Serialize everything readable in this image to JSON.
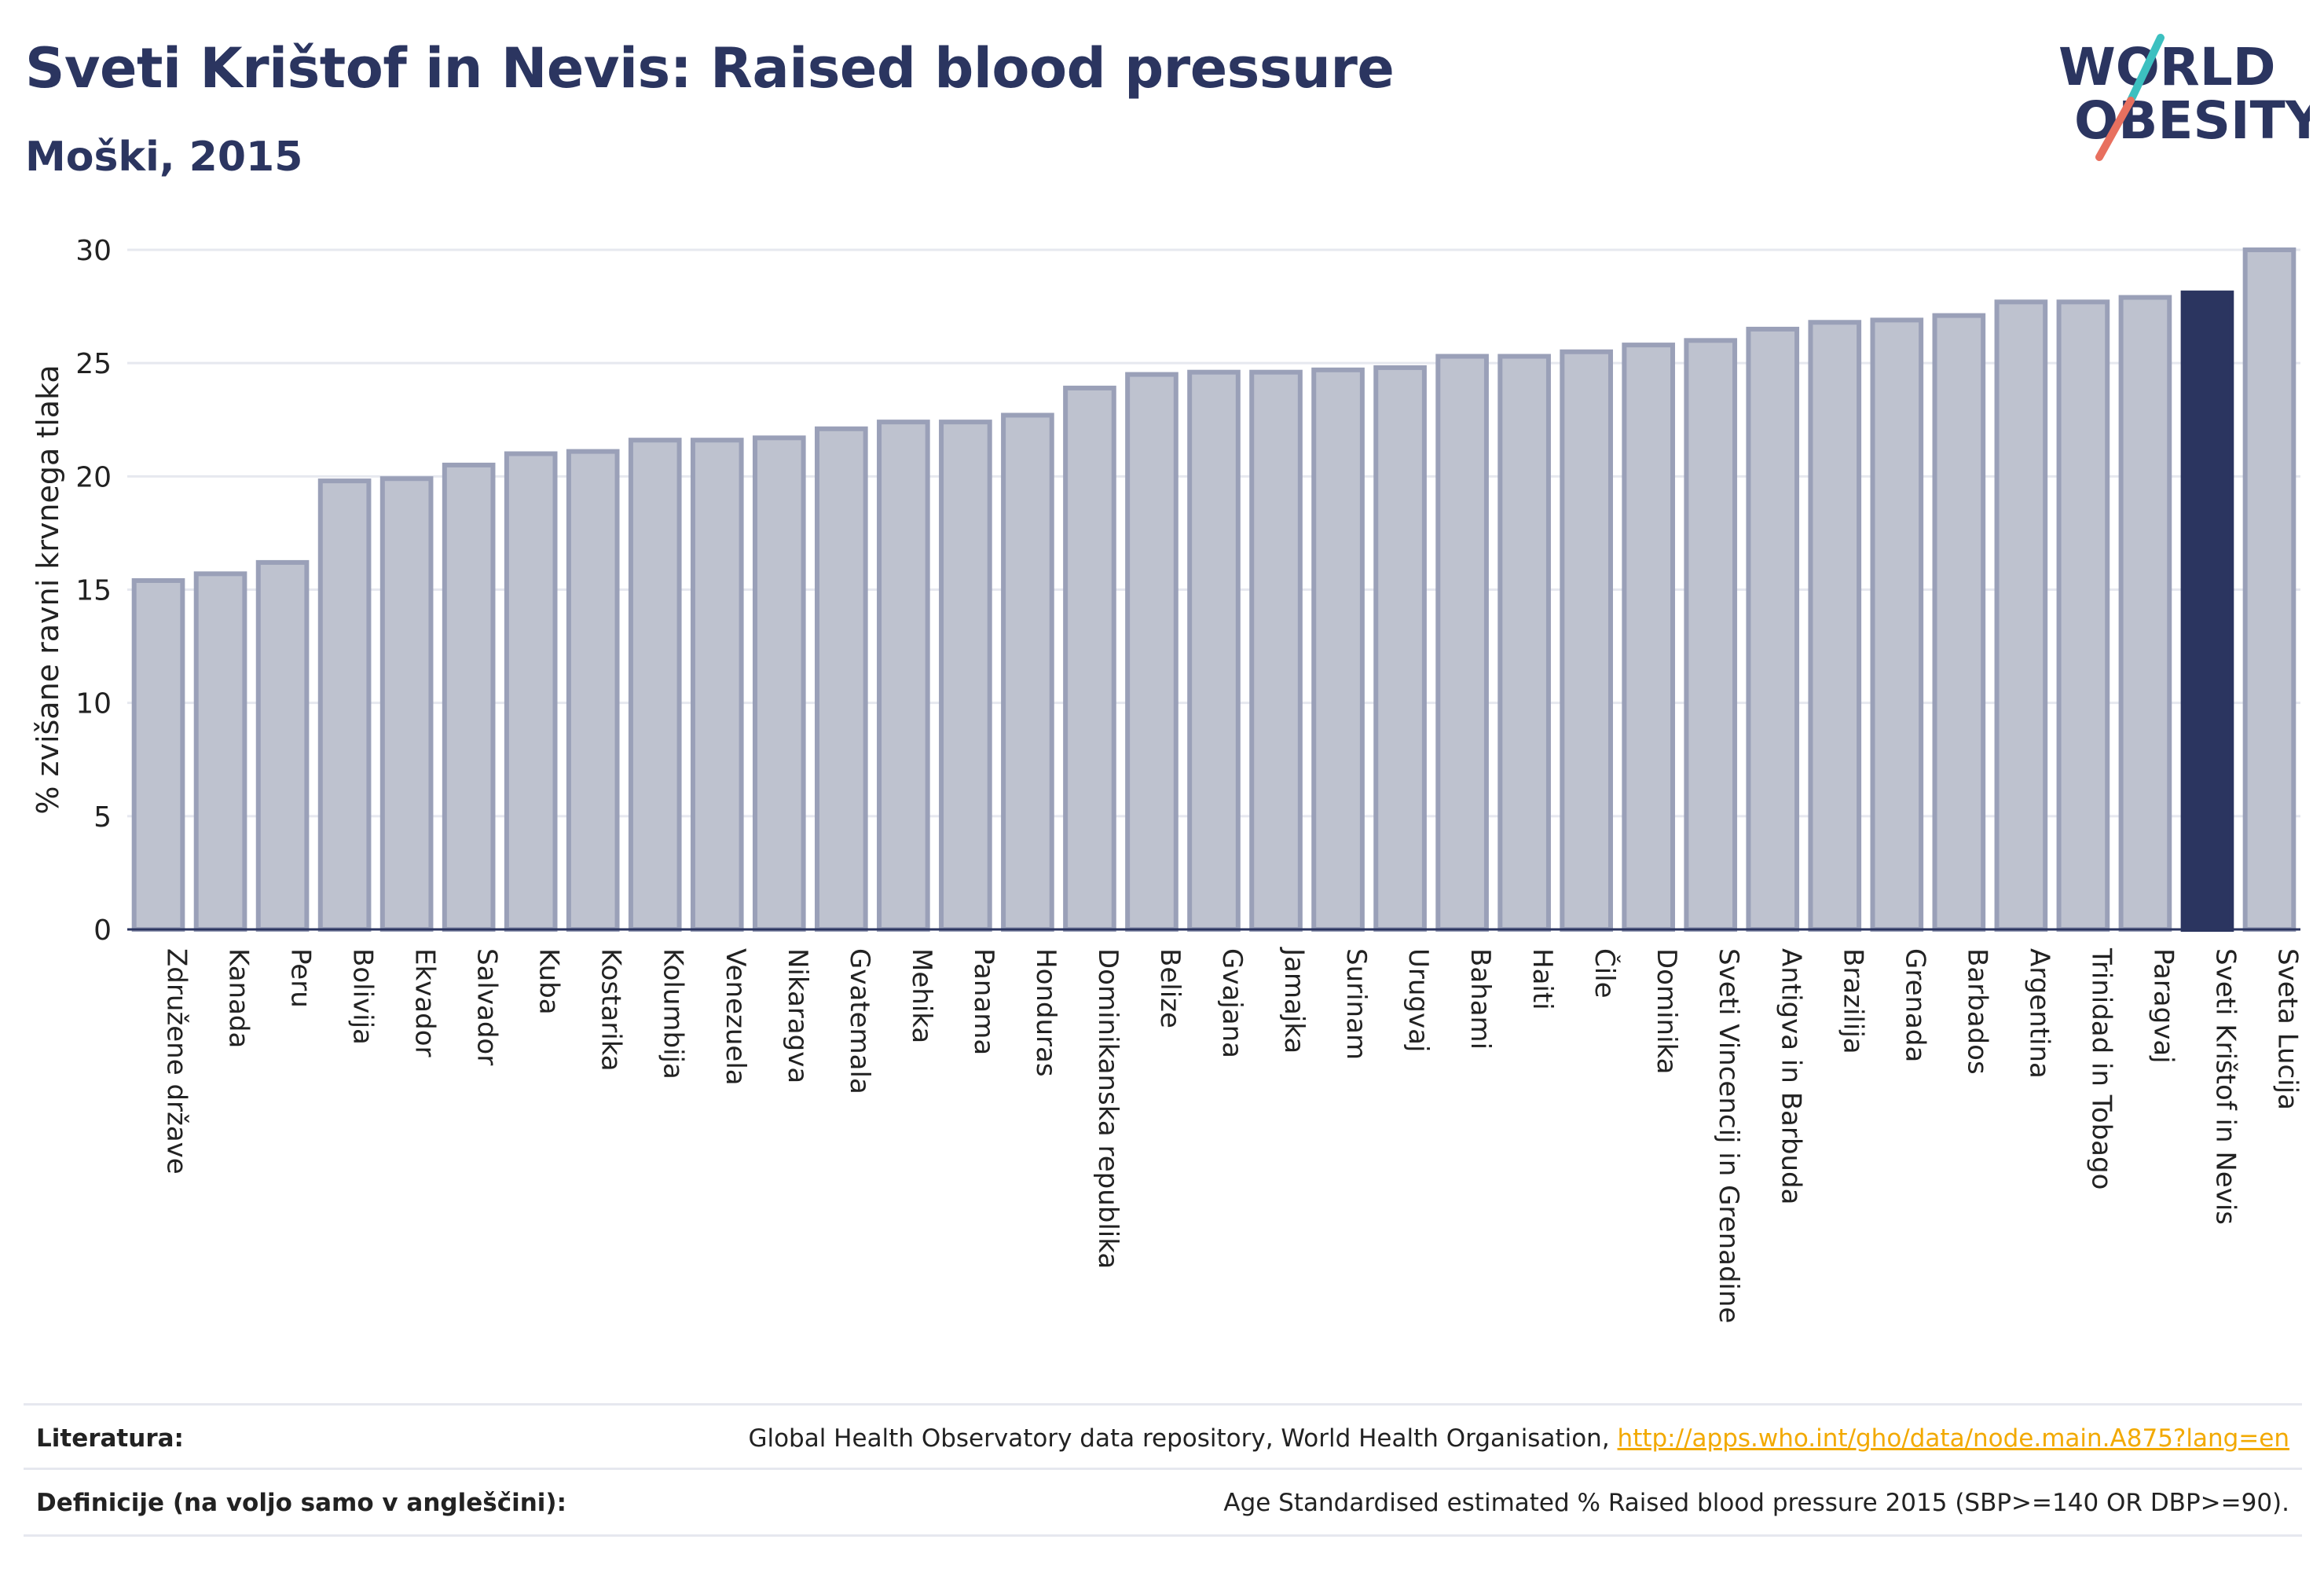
{
  "header": {
    "title": "Sveti Krištof in Nevis: Raised blood pressure",
    "subtitle": "Moški, 2015"
  },
  "logo": {
    "line1": "WORLD",
    "line2": "OBESITY"
  },
  "colors": {
    "bar_fill": "#bec2cf",
    "bar_stroke": "#9aa0b8",
    "highlight": "#2b3560",
    "grid": "#e6e8ef",
    "text": "#2b3560"
  },
  "chart_data": {
    "type": "bar",
    "ylabel": "% zvišane ravni krvnega tlaka",
    "ylim": [
      0,
      30
    ],
    "yticks": [
      0,
      5,
      10,
      15,
      20,
      25,
      30
    ],
    "grid": true,
    "highlight": "Sveti Krištof in Nevis",
    "categories": [
      "Združene države",
      "Kanada",
      "Peru",
      "Bolivija",
      "Ekvador",
      "Salvador",
      "Kuba",
      "Kostarika",
      "Kolumbija",
      "Venezuela",
      "Nikaragva",
      "Gvatemala",
      "Mehika",
      "Panama",
      "Honduras",
      "Dominikanska republika",
      "Belize",
      "Gvajana",
      "Jamajka",
      "Surinam",
      "Urugvaj",
      "Bahami",
      "Haiti",
      "Čile",
      "Dominika",
      "Sveti Vincencij in Grenadine",
      "Antigva in Barbuda",
      "Brazilija",
      "Grenada",
      "Barbados",
      "Argentina",
      "Trinidad in Tobago",
      "Paragvaj",
      "Sveti Krištof in Nevis",
      "Sveta Lucija"
    ],
    "values": [
      15.4,
      15.7,
      16.2,
      19.8,
      19.9,
      20.5,
      21.0,
      21.1,
      21.6,
      21.6,
      21.7,
      22.1,
      22.4,
      22.4,
      22.7,
      23.9,
      24.5,
      24.6,
      24.6,
      24.7,
      24.8,
      25.3,
      25.3,
      25.5,
      25.8,
      26.0,
      26.5,
      26.8,
      26.9,
      27.1,
      27.7,
      27.7,
      27.9,
      28.1,
      30.0
    ]
  },
  "footer": {
    "sources_label": "Literatura:",
    "sources_text": "Global Health Observatory data repository, World Health Organisation, ",
    "sources_link": "http://apps.who.int/gho/data/node.main.A875?lang=en",
    "definition_label": "Definicije (na voljo samo v angleščini):",
    "definition_text": "Age Standardised estimated % Raised blood pressure 2015 (SBP>=140 OR DBP>=90)."
  }
}
